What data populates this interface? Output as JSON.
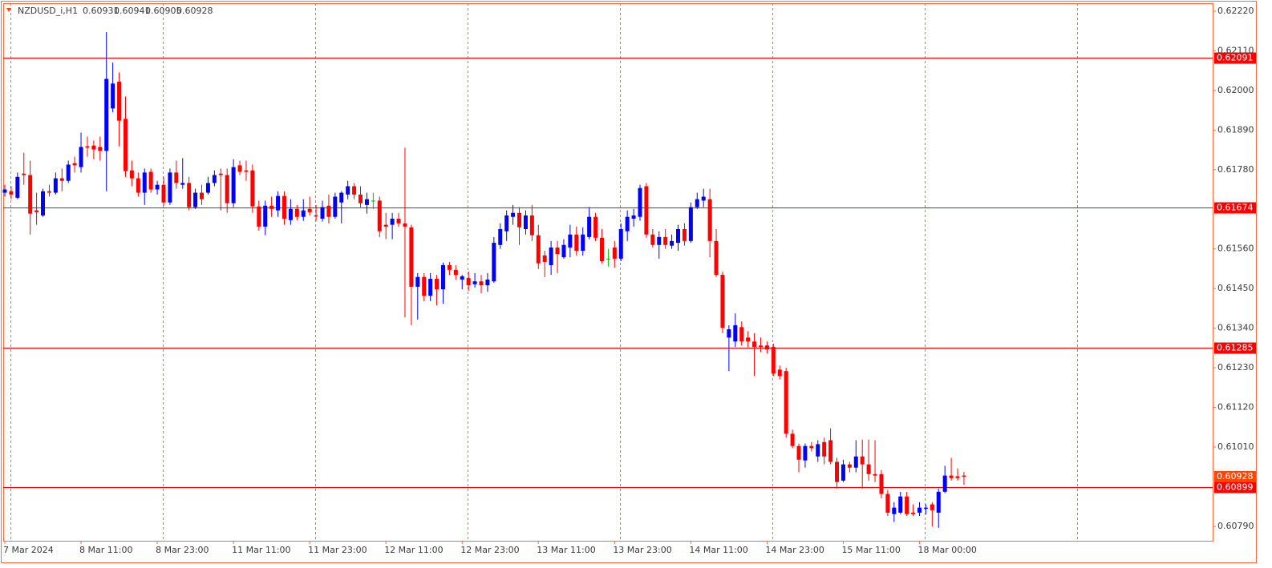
{
  "chart_data": {
    "type": "candlestick",
    "symbol": "NZDUSD_i,H1",
    "categories": [
      "7 Mar 2024",
      null,
      null,
      null,
      null,
      null,
      null,
      null,
      null,
      null,
      null,
      null,
      "8 Mar 11:00",
      null,
      null,
      null,
      null,
      null,
      null,
      null,
      null,
      null,
      null,
      null,
      "8 Mar 23:00",
      null,
      null,
      null,
      null,
      null,
      null,
      null,
      null,
      null,
      null,
      null,
      "11 Mar 11:00",
      null,
      null,
      null,
      null,
      null,
      null,
      null,
      null,
      null,
      null,
      null,
      "11 Mar 23:00",
      null,
      null,
      null,
      null,
      null,
      null,
      null,
      null,
      null,
      null,
      null,
      "12 Mar 11:00",
      null,
      null,
      null,
      null,
      null,
      null,
      null,
      null,
      null,
      null,
      null,
      "12 Mar 23:00",
      null,
      null,
      null,
      null,
      null,
      null,
      null,
      null,
      null,
      null,
      null,
      "13 Mar 11:00",
      null,
      null,
      null,
      null,
      null,
      null,
      null,
      null,
      null,
      null,
      null,
      "13 Mar 23:00",
      null,
      null,
      null,
      null,
      null,
      null,
      null,
      null,
      null,
      null,
      null,
      "14 Mar 11:00",
      null,
      null,
      null,
      null,
      null,
      null,
      null,
      null,
      null,
      null,
      null,
      "14 Mar 23:00",
      null,
      null,
      null,
      null,
      null,
      null,
      null,
      null,
      null,
      null,
      null,
      "15 Mar 11:00",
      null,
      null,
      null,
      null,
      null,
      null,
      null,
      null,
      null,
      null,
      null,
      "18 Mar 00:00",
      null,
      null,
      null,
      null,
      null,
      null,
      null
    ],
    "open": [
      0.61716,
      0.6172,
      0.61702,
      0.61769,
      0.61765,
      0.61667,
      0.61653,
      0.6172,
      0.61716,
      0.61756,
      0.61749,
      0.61798,
      0.61787,
      0.61845,
      0.61847,
      0.61843,
      0.61832,
      0.6195,
      0.62024,
      0.61921,
      0.61778,
      0.61756,
      0.61716,
      0.61774,
      0.61725,
      0.61738,
      0.61689,
      0.61772,
      0.61738,
      0.61743,
      0.61676,
      0.61716,
      0.61716,
      0.61743,
      0.61769,
      0.61765,
      0.61687,
      0.61792,
      0.61778,
      0.61778,
      0.61678,
      0.61622,
      0.6168,
      0.61667,
      0.61707,
      0.6164,
      0.61671,
      0.61649,
      0.61671,
      0.61653,
      0.61644,
      0.6168,
      0.61649,
      0.61689,
      0.61711,
      0.61734,
      0.61711,
      0.61682,
      0.61694,
      0.61694,
      0.61627,
      0.61627,
      0.61644,
      0.61631,
      0.6162,
      0.61455,
      0.61482,
      0.6143,
      0.61477,
      0.61448,
      0.61515,
      0.61502,
      0.61475,
      0.61479,
      0.61462,
      0.6147,
      0.61459,
      0.6147,
      0.61571,
      0.61609,
      0.61649,
      0.6166,
      0.61615,
      0.61653,
      0.61598,
      0.61542,
      0.61515,
      0.61564,
      0.61537,
      0.61564,
      0.616,
      0.61555,
      0.61593,
      0.61649,
      0.61591,
      0.61533,
      0.61564,
      0.61533,
      0.61609,
      0.61644,
      0.61649,
      0.61734,
      0.616,
      0.61571,
      0.61593,
      0.61569,
      0.61577,
      0.61615,
      0.61582,
      0.61676,
      0.61694,
      0.61698,
      0.61582,
      0.61488,
      0.61314,
      0.61303,
      0.61343,
      0.61314,
      0.61303,
      0.61292,
      0.61292,
      0.61288,
      0.61225,
      0.61221,
      0.61047,
      0.61013,
      0.60973,
      0.61013,
      0.60984,
      0.61024,
      0.61029,
      0.60969,
      0.60917,
      0.60962,
      0.60953,
      0.60984,
      0.60962,
      0.60935,
      0.60935,
      0.6088,
      0.60824,
      0.60828,
      0.60873,
      0.60828,
      0.60828,
      0.60839,
      0.60851,
      0.60828,
      0.60886,
      0.60931,
      0.60929,
      0.60931
    ],
    "high": [
      0.61738,
      0.61734,
      0.61772,
      0.61827,
      0.61805,
      0.61716,
      0.61727,
      0.61738,
      0.61772,
      0.61783,
      0.61805,
      0.61816,
      0.61883,
      0.61872,
      0.61861,
      0.61872,
      0.62162,
      0.62077,
      0.6205,
      0.61983,
      0.61805,
      0.61772,
      0.61783,
      0.61783,
      0.61749,
      0.6176,
      0.61783,
      0.61805,
      0.61812,
      0.6176,
      0.61727,
      0.61738,
      0.6176,
      0.61778,
      0.61783,
      0.61783,
      0.61809,
      0.61805,
      0.61805,
      0.61794,
      0.61694,
      0.61694,
      0.61705,
      0.6172,
      0.6172,
      0.61698,
      0.61682,
      0.61698,
      0.61705,
      0.61682,
      0.61694,
      0.61711,
      0.61716,
      0.6172,
      0.61749,
      0.61743,
      0.61734,
      0.61716,
      0.61716,
      0.61705,
      0.6166,
      0.6166,
      0.6166,
      0.61841,
      0.61627,
      0.61493,
      0.61493,
      0.61493,
      0.61488,
      0.61522,
      0.61524,
      0.61515,
      0.61488,
      0.61497,
      0.61493,
      0.61488,
      0.61493,
      0.61593,
      0.61631,
      0.61667,
      0.61682,
      0.61676,
      0.61667,
      0.61682,
      0.61627,
      0.61555,
      0.61582,
      0.61582,
      0.61587,
      0.61627,
      0.61622,
      0.6162,
      0.61676,
      0.6166,
      0.61615,
      0.6156,
      0.61582,
      0.61631,
      0.61667,
      0.61671,
      0.61738,
      0.61743,
      0.61615,
      0.61609,
      0.61615,
      0.616,
      0.61627,
      0.61631,
      0.61689,
      0.61716,
      0.61727,
      0.61727,
      0.61615,
      0.61497,
      0.61348,
      0.61381,
      0.61359,
      0.61332,
      0.61326,
      0.61314,
      0.61303,
      0.61297,
      0.61236,
      0.6123,
      0.61058,
      0.6102,
      0.6102,
      0.61024,
      0.61029,
      0.61036,
      0.61062,
      0.6098,
      0.60975,
      0.60969,
      0.61029,
      0.61031,
      0.61031,
      0.61029,
      0.60946,
      0.60891,
      0.60857,
      0.60886,
      0.60886,
      0.60851,
      0.60857,
      0.60851,
      0.60857,
      0.60895,
      0.60958,
      0.6098,
      0.60951,
      0.60941
    ],
    "low": [
      0.61705,
      0.61698,
      0.61698,
      0.61738,
      0.616,
      0.61627,
      0.61649,
      0.61705,
      0.61711,
      0.6172,
      0.61743,
      0.61772,
      0.61772,
      0.61816,
      0.61809,
      0.61805,
      0.6172,
      0.61939,
      0.61845,
      0.6176,
      0.61734,
      0.61705,
      0.61682,
      0.61716,
      0.61711,
      0.6168,
      0.61682,
      0.61727,
      0.61727,
      0.61667,
      0.61671,
      0.61682,
      0.61711,
      0.61734,
      0.61667,
      0.6166,
      0.61676,
      0.61765,
      0.61749,
      0.6166,
      0.61611,
      0.61598,
      0.61649,
      0.61649,
      0.61627,
      0.61627,
      0.6164,
      0.61638,
      0.61653,
      0.61638,
      0.61636,
      0.61631,
      0.61644,
      0.61631,
      0.61698,
      0.61698,
      0.61676,
      0.61658,
      0.61671,
      0.61593,
      0.61587,
      0.61587,
      0.61622,
      0.6137,
      0.61348,
      0.61364,
      0.61415,
      0.61415,
      0.61404,
      0.61408,
      0.61488,
      0.61475,
      0.61448,
      0.61444,
      0.61453,
      0.61437,
      0.61441,
      0.61466,
      0.6156,
      0.61582,
      0.61627,
      0.61571,
      0.616,
      0.61582,
      0.61504,
      0.61482,
      0.61488,
      0.61493,
      0.61533,
      0.61537,
      0.61542,
      0.61542,
      0.61587,
      0.61582,
      0.6152,
      0.61511,
      0.61508,
      0.61526,
      0.61582,
      0.61622,
      0.61638,
      0.61591,
      0.61564,
      0.61533,
      0.6156,
      0.6156,
      0.61555,
      0.61569,
      0.61577,
      0.61671,
      0.61676,
      0.61537,
      0.61482,
      0.61326,
      0.61221,
      0.61288,
      0.61292,
      0.61288,
      0.61207,
      0.61274,
      0.6127,
      0.61207,
      0.61198,
      0.61036,
      0.61007,
      0.6094,
      0.60953,
      0.60998,
      0.60969,
      0.60962,
      0.60962,
      0.60895,
      0.60913,
      0.6094,
      0.6094,
      0.60895,
      0.60917,
      0.60913,
      0.60868,
      0.60819,
      0.60802,
      0.60824,
      0.60819,
      0.60819,
      0.60819,
      0.60824,
      0.6079,
      0.60786,
      0.60882,
      0.60917,
      0.60917,
      0.60905
    ],
    "close": [
      0.61725,
      0.61711,
      0.6176,
      0.61765,
      0.61658,
      0.61662,
      0.6172,
      0.61716,
      0.61756,
      0.61749,
      0.61794,
      0.61792,
      0.61843,
      0.61841,
      0.61836,
      0.61832,
      0.62032,
      0.62019,
      0.61916,
      0.61776,
      0.61756,
      0.61716,
      0.61772,
      0.61725,
      0.61738,
      0.61689,
      0.61772,
      0.61743,
      0.61743,
      0.61676,
      0.61716,
      0.61698,
      0.61743,
      0.61765,
      0.61765,
      0.61687,
      0.61787,
      0.61774,
      0.61774,
      0.61678,
      0.61622,
      0.6168,
      0.61671,
      0.61707,
      0.61644,
      0.61671,
      0.61649,
      0.61667,
      0.61662,
      0.6165,
      0.61676,
      0.61649,
      0.61705,
      0.61716,
      0.61734,
      0.61711,
      0.61687,
      0.61698,
      0.61694,
      0.61609,
      0.61622,
      0.61644,
      0.61631,
      0.61622,
      0.61455,
      0.61482,
      0.6143,
      0.61477,
      0.61448,
      0.61515,
      0.61502,
      0.61488,
      0.61484,
      0.61459,
      0.6147,
      0.61459,
      0.61475,
      0.61577,
      0.61615,
      0.61653,
      0.6166,
      0.6162,
      0.61653,
      0.61598,
      0.6152,
      0.61524,
      0.61564,
      0.61546,
      0.61571,
      0.616,
      0.61555,
      0.616,
      0.61649,
      0.61591,
      0.61526,
      0.61533,
      0.61533,
      0.61615,
      0.61649,
      0.61653,
      0.61729,
      0.616,
      0.61571,
      0.61593,
      0.61571,
      0.61582,
      0.61615,
      0.61582,
      0.61676,
      0.61698,
      0.61705,
      0.61582,
      0.61488,
      0.61341,
      0.61337,
      0.61348,
      0.61303,
      0.61303,
      0.61288,
      0.61288,
      0.61281,
      0.61214,
      0.61207,
      0.61047,
      0.61013,
      0.60975,
      0.61013,
      0.61007,
      0.61018,
      0.60984,
      0.60969,
      0.60913,
      0.60962,
      0.60953,
      0.60984,
      0.60962,
      0.60935,
      0.60931,
      0.6088,
      0.60828,
      0.60842,
      0.60873,
      0.60824,
      0.60824,
      0.60842,
      0.60842,
      0.60835,
      0.60886,
      0.60931,
      0.60924,
      0.60924,
      0.60928
    ],
    "ylim": [
      0.6075,
      0.62242
    ],
    "yticks": [
      {
        "value": 0.6222,
        "label": "0.62220"
      },
      {
        "value": 0.6211,
        "label": "0.62110"
      },
      {
        "value": 0.62,
        "label": "0.62000"
      },
      {
        "value": 0.6189,
        "label": "0.61890"
      },
      {
        "value": 0.6178,
        "label": "0.61780"
      },
      {
        "value": 0.6156,
        "label": "0.61560"
      },
      {
        "value": 0.6145,
        "label": "0.61450"
      },
      {
        "value": 0.6134,
        "label": "0.61340"
      },
      {
        "value": 0.6123,
        "label": "0.61230"
      },
      {
        "value": 0.6112,
        "label": "0.61120"
      },
      {
        "value": 0.6101,
        "label": "0.61010"
      },
      {
        "value": 0.6079,
        "label": "0.60790"
      }
    ],
    "levels": [
      0.62091,
      0.61674,
      0.61285,
      0.60899
    ],
    "bull_color": "#0000ff",
    "bear_color": "#ff0000",
    "doji_color": "#00c000",
    "level_color": "#ff0000",
    "price_color": "#ff4500",
    "grid": true
  }
}
